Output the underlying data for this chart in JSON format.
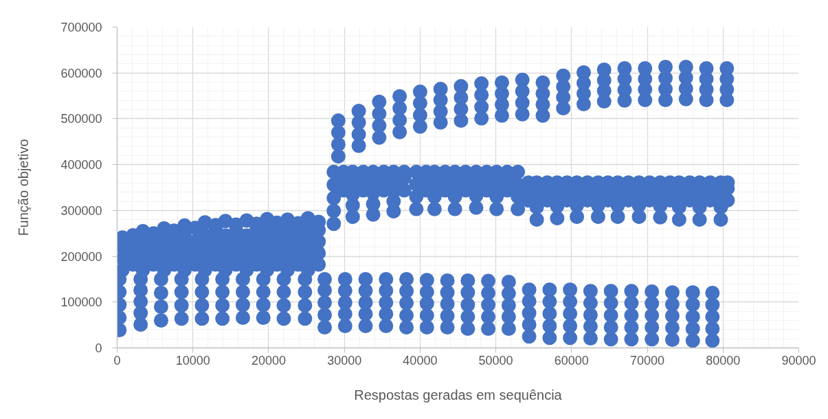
{
  "chart_data": {
    "type": "scatter",
    "xlabel": "Respostas geradas em sequência",
    "ylabel": "Função objetivo",
    "color": "#4472c4",
    "marker": "circle",
    "grid": true,
    "xlim": [
      0,
      90000
    ],
    "ylim": [
      0,
      700000
    ],
    "xticks": [
      0,
      10000,
      20000,
      30000,
      40000,
      50000,
      60000,
      70000,
      80000,
      90000
    ],
    "yticks": [
      0,
      100000,
      200000,
      300000,
      400000,
      500000,
      600000,
      700000
    ],
    "x": [
      700,
      700,
      700,
      700,
      2100,
      2100,
      2100,
      2100,
      3400,
      3400,
      3400,
      3400,
      3400,
      4800,
      4800,
      4800,
      4800,
      6200,
      6200,
      6200,
      6200,
      6200,
      7500,
      7500,
      7500,
      7500,
      8900,
      8900,
      8900,
      8900,
      8900,
      10300,
      10300,
      10300,
      10300,
      11600,
      11600,
      11600,
      11600,
      11600,
      13000,
      13000,
      13000,
      13000,
      13000,
      14300,
      14300,
      14300,
      14300,
      14300,
      15700,
      15700,
      15700,
      15700,
      15700,
      17100,
      17100,
      17100,
      17100,
      17100,
      18400,
      18400,
      18400,
      18400,
      18400,
      19800,
      19800,
      19800,
      19800,
      19800,
      19800,
      21100,
      21100,
      21100,
      21100,
      21100,
      22500,
      22500,
      22500,
      22500,
      22500,
      22500,
      23900,
      23900,
      23900,
      23900,
      23900,
      25200,
      25200,
      25200,
      25200,
      25200,
      25200,
      26600,
      26600,
      26600,
      26600,
      26600,
      300,
      300,
      300,
      300,
      300,
      3100,
      3100,
      3100,
      3100,
      3100,
      5800,
      5800,
      5800,
      5800,
      8500,
      8500,
      8500,
      8500,
      11200,
      11200,
      11200,
      11200,
      13900,
      13900,
      13900,
      13900,
      16600,
      16600,
      16600,
      16600,
      19300,
      19300,
      19300,
      19300,
      22000,
      22000,
      22000,
      22000,
      24800,
      24800,
      24800,
      24800,
      27400,
      27400,
      27400,
      27400,
      27400,
      30100,
      30100,
      30100,
      30100,
      30100,
      32800,
      32800,
      32800,
      32800,
      32800,
      35500,
      35500,
      35500,
      35500,
      35500,
      38200,
      38200,
      38200,
      38200,
      38200,
      40900,
      40900,
      40900,
      40900,
      40900,
      43600,
      43600,
      43600,
      43600,
      43600,
      46300,
      46300,
      46300,
      46300,
      46300,
      49000,
      49000,
      49000,
      49000,
      49000,
      51700,
      51700,
      51700,
      51700,
      51700,
      54400,
      54400,
      54400,
      54400,
      54400,
      57100,
      57100,
      57100,
      57100,
      57100,
      59800,
      59800,
      59800,
      59800,
      59800,
      62500,
      62500,
      62500,
      62500,
      62500,
      65200,
      65200,
      65200,
      65200,
      65200,
      67900,
      67900,
      67900,
      67900,
      67900,
      70600,
      70600,
      70600,
      70600,
      70600,
      73300,
      73300,
      73300,
      73300,
      73300,
      76000,
      76000,
      76000,
      76000,
      76000,
      78600,
      78600,
      78600,
      78600,
      78600,
      29200,
      29200,
      29200,
      29200,
      31900,
      31900,
      31900,
      31900,
      34600,
      34600,
      34600,
      34600,
      37300,
      37300,
      37300,
      37300,
      40000,
      40000,
      40000,
      40000,
      42700,
      42700,
      42700,
      42700,
      45400,
      45400,
      45400,
      45400,
      48100,
      48100,
      48100,
      48100,
      50800,
      50800,
      50800,
      50800,
      53500,
      53500,
      53500,
      53500,
      56200,
      56200,
      56200,
      56200,
      58900,
      58900,
      58900,
      58900,
      61600,
      61600,
      61600,
      61600,
      64300,
      64300,
      64300,
      64300,
      67000,
      67000,
      67000,
      67000,
      69700,
      69700,
      69700,
      69700,
      72400,
      72400,
      72400,
      72400,
      75100,
      75100,
      75100,
      75100,
      77800,
      77800,
      77800,
      77800,
      80500,
      80500,
      80500,
      80500,
      28600,
      28600,
      28600,
      28600,
      28600,
      31100,
      31100,
      31100,
      31100,
      31100,
      33800,
      33800,
      33800,
      33800,
      33800,
      36500,
      36500,
      36500,
      36500,
      36500,
      39500,
      39500,
      39500,
      39500,
      41900,
      41900,
      41900,
      41900,
      44600,
      44600,
      44600,
      44600,
      47400,
      47400,
      47400,
      47400,
      50100,
      50100,
      50100,
      50100,
      52900,
      52900,
      52900,
      52900,
      55400,
      55400,
      55400,
      55400,
      58100,
      58100,
      58100,
      58100,
      60700,
      60700,
      60700,
      60700,
      63500,
      63500,
      63500,
      63500,
      66100,
      66100,
      66100,
      66100,
      68900,
      68900,
      68900,
      68900,
      71700,
      71700,
      71700,
      71700,
      74200,
      74200,
      74200,
      74200,
      76900,
      76900,
      76900,
      76900,
      79700,
      79700,
      79700,
      79700,
      29900,
      29900,
      29900,
      32500,
      32500,
      32500,
      35200,
      35200,
      35200,
      37900,
      37900,
      37900,
      40800,
      40800,
      40800,
      43300,
      43300,
      43300,
      46000,
      46000,
      46000,
      48800,
      48800,
      48800,
      51500,
      51500,
      51500,
      54300,
      54300,
      54300,
      56800,
      56800,
      56800,
      59400,
      59400,
      59400,
      62100,
      62100,
      62100,
      64800,
      64800,
      64800,
      67500,
      67500,
      67500,
      70300,
      70300,
      70300,
      73000,
      73000,
      73000,
      75600,
      75600,
      75600,
      78300,
      78300,
      78300,
      80600,
      80600,
      80600
    ],
    "values": [
      170000,
      195000,
      220000,
      241000,
      182000,
      207000,
      232000,
      246000,
      170000,
      195000,
      220000,
      245000,
      255000,
      182000,
      207000,
      232000,
      250000,
      170000,
      195000,
      220000,
      245000,
      261000,
      182000,
      207000,
      232000,
      256000,
      170000,
      195000,
      220000,
      245000,
      267000,
      182000,
      207000,
      232000,
      262000,
      170000,
      195000,
      220000,
      245000,
      274000,
      182000,
      207000,
      232000,
      257000,
      268000,
      170000,
      195000,
      220000,
      245000,
      277000,
      182000,
      207000,
      232000,
      257000,
      269000,
      170000,
      195000,
      220000,
      245000,
      278000,
      182000,
      207000,
      232000,
      257000,
      271000,
      170000,
      195000,
      220000,
      245000,
      270000,
      281000,
      182000,
      207000,
      232000,
      257000,
      273000,
      170000,
      195000,
      220000,
      245000,
      270000,
      280000,
      182000,
      207000,
      232000,
      257000,
      272000,
      170000,
      195000,
      220000,
      245000,
      270000,
      283000,
      182000,
      207000,
      232000,
      257000,
      275000,
      39000,
      66000,
      94000,
      122000,
      150000,
      51000,
      76000,
      101000,
      126000,
      150000,
      60000,
      90000,
      120000,
      150000,
      64000,
      93000,
      122000,
      150000,
      64000,
      93000,
      122000,
      150000,
      64000,
      93000,
      122000,
      150000,
      66000,
      94000,
      122000,
      150000,
      66000,
      94000,
      122000,
      150000,
      64000,
      93000,
      122000,
      150000,
      64000,
      93000,
      122000,
      150000,
      45000,
      72000,
      99000,
      126000,
      150000,
      48000,
      74000,
      99000,
      125000,
      150000,
      48000,
      74000,
      99000,
      125000,
      150000,
      48000,
      74000,
      99000,
      125000,
      150000,
      45000,
      71000,
      98000,
      124000,
      150000,
      45000,
      71000,
      97000,
      122000,
      148000,
      45000,
      70000,
      96000,
      121000,
      147000,
      42000,
      68000,
      94000,
      121000,
      147000,
      42000,
      68000,
      94000,
      120000,
      146000,
      42000,
      68000,
      93000,
      119000,
      144000,
      25000,
      51000,
      76000,
      102000,
      127000,
      22000,
      48000,
      75000,
      101000,
      127000,
      22000,
      48000,
      75000,
      101000,
      127000,
      21000,
      47000,
      72000,
      98000,
      124000,
      19000,
      45000,
      71000,
      98000,
      124000,
      19000,
      45000,
      71000,
      98000,
      124000,
      19000,
      45000,
      71000,
      97000,
      123000,
      18000,
      44000,
      70000,
      95000,
      121000,
      16000,
      42000,
      68000,
      95000,
      121000,
      16000,
      42000,
      68000,
      94000,
      120000,
      418000,
      444000,
      470000,
      496000,
      441000,
      466000,
      492000,
      517000,
      459000,
      485000,
      511000,
      537000,
      471000,
      497000,
      523000,
      549000,
      483000,
      508000,
      534000,
      559000,
      492000,
      516000,
      541000,
      565000,
      496000,
      521000,
      546000,
      571000,
      501000,
      526000,
      552000,
      577000,
      507000,
      531000,
      555000,
      579000,
      510000,
      535000,
      560000,
      585000,
      507000,
      531000,
      555000,
      579000,
      523000,
      547000,
      570000,
      594000,
      532000,
      555000,
      578000,
      601000,
      538000,
      561000,
      584000,
      607000,
      540000,
      563000,
      587000,
      610000,
      541000,
      564000,
      587000,
      610000,
      541000,
      565000,
      589000,
      613000,
      543000,
      566000,
      590000,
      613000,
      541000,
      564000,
      587000,
      610000,
      541000,
      564000,
      587000,
      610000,
      271000,
      299000,
      327000,
      356000,
      384000,
      286000,
      311000,
      335000,
      360000,
      384000,
      291000,
      314000,
      338000,
      361000,
      384000,
      298000,
      320000,
      341000,
      363000,
      384000,
      303000,
      330000,
      357000,
      384000,
      303000,
      330000,
      357000,
      384000,
      303000,
      330000,
      357000,
      384000,
      306000,
      332000,
      358000,
      384000,
      303000,
      330000,
      357000,
      384000,
      303000,
      330000,
      357000,
      384000,
      280000,
      307000,
      334000,
      361000,
      283000,
      309000,
      335000,
      361000,
      286000,
      311000,
      336000,
      361000,
      286000,
      311000,
      336000,
      361000,
      286000,
      311000,
      336000,
      361000,
      286000,
      311000,
      336000,
      361000,
      285000,
      310000,
      336000,
      361000,
      280000,
      307000,
      334000,
      361000,
      280000,
      307000,
      334000,
      361000,
      280000,
      307000,
      334000,
      361000,
      344000,
      371000,
      384000,
      344000,
      371000,
      384000,
      344000,
      371000,
      384000,
      344000,
      371000,
      384000,
      344000,
      371000,
      384000,
      344000,
      371000,
      384000,
      344000,
      371000,
      384000,
      344000,
      371000,
      384000,
      344000,
      371000,
      384000,
      322000,
      348000,
      361000,
      322000,
      348000,
      361000,
      322000,
      348000,
      361000,
      322000,
      348000,
      361000,
      322000,
      348000,
      361000,
      322000,
      348000,
      361000,
      322000,
      348000,
      361000,
      322000,
      348000,
      361000,
      322000,
      348000,
      361000,
      322000,
      348000,
      361000,
      322000,
      348000,
      361000
    ]
  }
}
